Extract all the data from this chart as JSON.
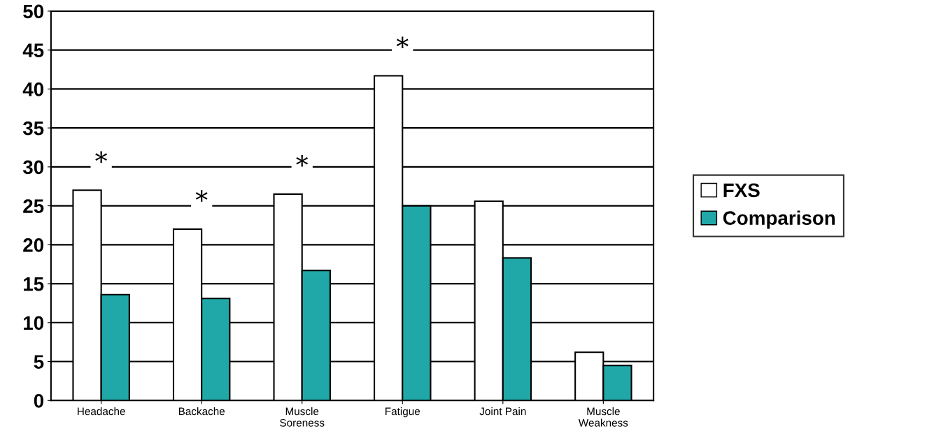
{
  "chart_data": {
    "type": "bar",
    "categories": [
      "Headache",
      "Backache",
      "Muscle\nSoreness",
      "Fatigue",
      "Joint Pain",
      "Muscle\nWeakness"
    ],
    "series": [
      {
        "name": "FXS",
        "color": "#ffffff",
        "values": [
          27.0,
          22.0,
          26.5,
          41.7,
          25.6,
          6.2
        ]
      },
      {
        "name": "Comparison",
        "color": "#20a8a8",
        "values": [
          13.6,
          13.1,
          16.7,
          25.0,
          18.3,
          4.5
        ]
      }
    ],
    "ylim": [
      0,
      50
    ],
    "yticks": [
      0,
      5,
      10,
      15,
      20,
      25,
      30,
      35,
      40,
      45,
      50
    ],
    "grid": "y",
    "legend": "right",
    "annotations": [
      "*",
      "*",
      "*",
      "*"
    ]
  }
}
